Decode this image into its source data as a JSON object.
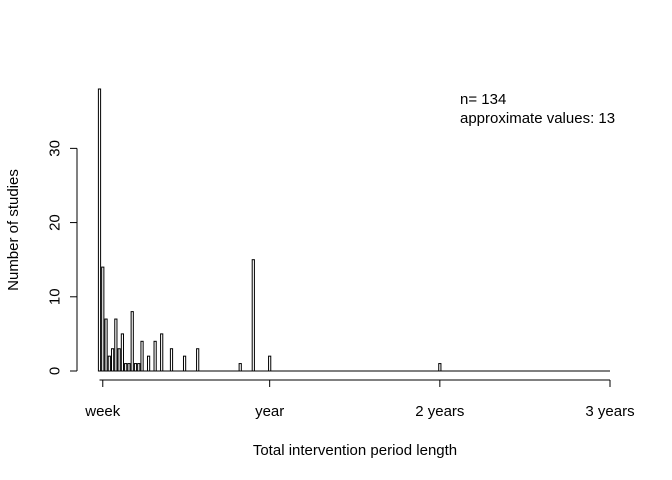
{
  "chart_data": {
    "type": "bar",
    "title": "",
    "xlabel": "Total intervention period length",
    "ylabel": "Number of studies",
    "annotations": [
      "n= 134",
      "approximate values: 13"
    ],
    "x_unit": "weeks",
    "xlim": [
      0,
      156
    ],
    "ylim": [
      0,
      38
    ],
    "yticks": [
      0,
      10,
      20,
      30
    ],
    "xticks": [
      {
        "value": 1,
        "label": "week"
      },
      {
        "value": 52,
        "label": "year"
      },
      {
        "value": 104,
        "label": "2 years"
      },
      {
        "value": 156,
        "label": "3 years"
      }
    ],
    "x": [
      0,
      1,
      2,
      3,
      4,
      5,
      6,
      7,
      8,
      9,
      10,
      11,
      12,
      13,
      15,
      17,
      19,
      22,
      26,
      30,
      43,
      47,
      52,
      104,
      156
    ],
    "values": [
      38,
      14,
      7,
      2,
      3,
      7,
      3,
      5,
      1,
      1,
      8,
      1,
      1,
      4,
      2,
      4,
      5,
      3,
      2,
      3,
      1,
      15,
      2,
      1,
      0
    ]
  }
}
